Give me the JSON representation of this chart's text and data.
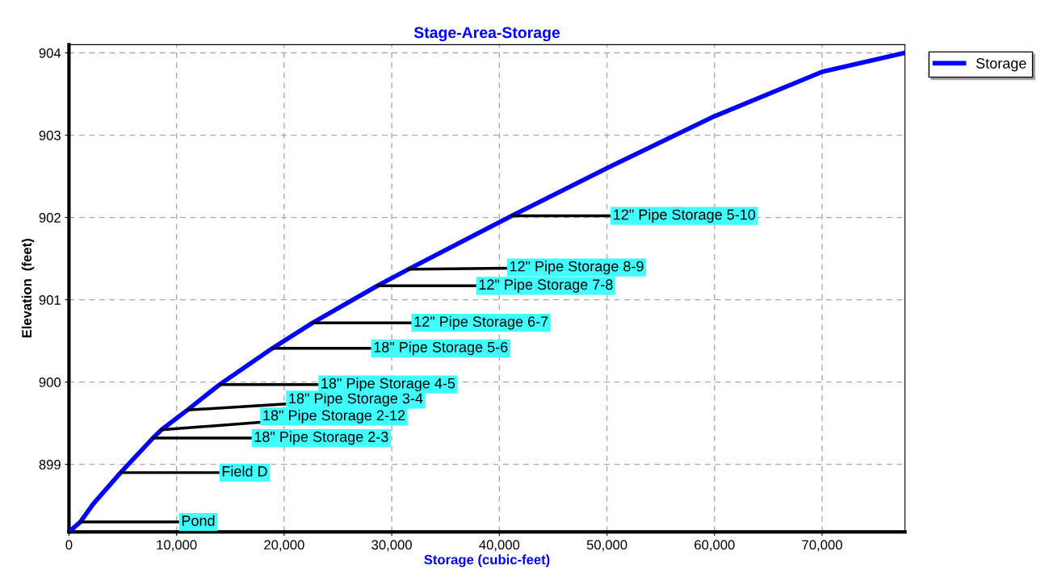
{
  "chart_data": {
    "type": "line",
    "title": "Stage-Area-Storage",
    "xlabel": "Storage (cubic-feet)",
    "ylabel": "Elevation  (feet)",
    "x": [
      0,
      1050,
      2260,
      4800,
      7800,
      8600,
      11000,
      14000,
      18900,
      22650,
      28670,
      31530,
      41160,
      50000,
      60000,
      70000,
      77650
    ],
    "series": [
      {
        "name": "Storage",
        "color": "#0000ff",
        "values": [
          898.18,
          898.3,
          898.52,
          898.9,
          899.32,
          899.42,
          899.66,
          899.97,
          900.41,
          900.72,
          901.17,
          901.37,
          902.02,
          902.6,
          903.23,
          903.77,
          904.0
        ]
      }
    ],
    "xlim": [
      0,
      77700
    ],
    "ylim": [
      898.18,
      904.1
    ],
    "xticks": [
      0,
      {
        "value": 10000,
        "label": "10,000"
      },
      {
        "value": 20000,
        "label": "20,000"
      },
      {
        "value": 30000,
        "label": "30,000"
      },
      {
        "value": 40000,
        "label": "40,000"
      },
      {
        "value": 50000,
        "label": "50,000"
      },
      {
        "value": 60000,
        "label": "60,000"
      },
      {
        "value": 70000,
        "label": "70,000"
      }
    ],
    "yticks": [
      899,
      900,
      901,
      902,
      903,
      904
    ],
    "grid": true,
    "legend": "top right",
    "marker": "none",
    "line_style": "solid",
    "annotations": [
      {
        "text": "Pond",
        "x": 1050,
        "y": 898.3
      },
      {
        "text": "Field D",
        "x": 4800,
        "y": 898.9
      },
      {
        "text": "18\" Pipe Storage 2-3",
        "x": 7800,
        "y": 899.32
      },
      {
        "text": "18\" Pipe Storage 2-12",
        "x": 8600,
        "y": 899.42
      },
      {
        "text": "18\" Pipe Storage 3-4",
        "x": 11000,
        "y": 899.66
      },
      {
        "text": "18\" Pipe Storage 4-5",
        "x": 14000,
        "y": 899.97
      },
      {
        "text": "18\" Pipe Storage 5-6",
        "x": 18900,
        "y": 900.41
      },
      {
        "text": "12\" Pipe Storage 6-7",
        "x": 22650,
        "y": 900.72
      },
      {
        "text": "12\" Pipe Storage 7-8",
        "x": 28670,
        "y": 901.17
      },
      {
        "text": "12\" Pipe Storage 8-9",
        "x": 31530,
        "y": 901.37
      },
      {
        "text": "12\" Pipe Storage 5-10",
        "x": 41160,
        "y": 902.02
      }
    ]
  }
}
